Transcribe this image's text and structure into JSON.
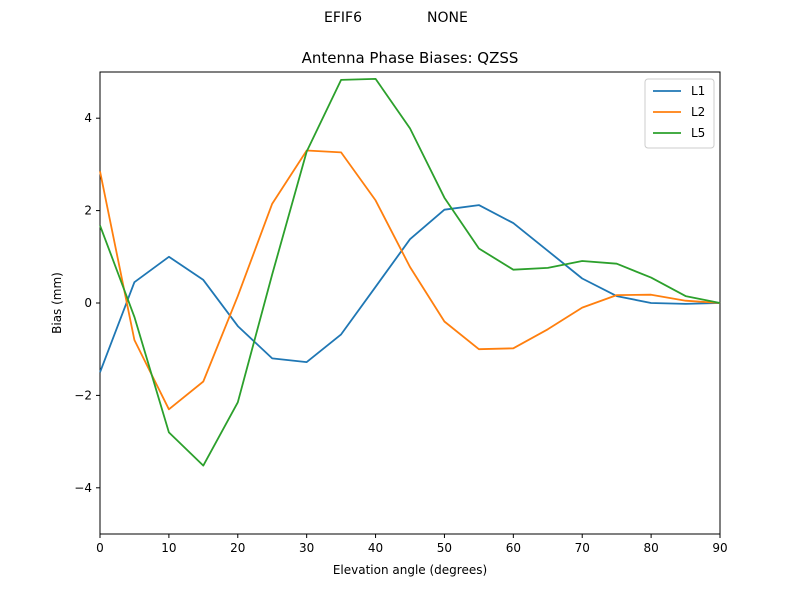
{
  "header": {
    "left": "EFIF6",
    "right": "NONE"
  },
  "chart_data": {
    "type": "line",
    "title": "Antenna Phase Biases: QZSS",
    "xlabel": "Elevation angle (degrees)",
    "ylabel": "Bias (mm)",
    "xlim": [
      0,
      90
    ],
    "ylim": [
      -5,
      5
    ],
    "xticks": [
      0,
      10,
      20,
      30,
      40,
      50,
      60,
      70,
      80,
      90
    ],
    "yticks": [
      -4,
      -2,
      0,
      2,
      4
    ],
    "xtick_labels": [
      "0",
      "10",
      "20",
      "30",
      "40",
      "50",
      "60",
      "70",
      "80",
      "90"
    ],
    "ytick_labels": [
      "−4",
      "−2",
      "0",
      "2",
      "4"
    ],
    "grid": false,
    "legend_position": "top-right",
    "x": [
      0,
      5,
      10,
      15,
      20,
      25,
      30,
      35,
      40,
      45,
      50,
      55,
      60,
      65,
      70,
      75,
      80,
      85,
      90
    ],
    "series": [
      {
        "name": "L1",
        "color": "#1f77b4",
        "values": [
          -1.5,
          0.45,
          1.0,
          0.5,
          -0.5,
          -1.2,
          -1.28,
          -0.68,
          0.35,
          1.38,
          2.02,
          2.12,
          1.73,
          1.13,
          0.53,
          0.15,
          0.0,
          -0.02,
          0.0
        ]
      },
      {
        "name": "L2",
        "color": "#ff7f0e",
        "values": [
          2.85,
          -0.8,
          -2.3,
          -1.7,
          0.15,
          2.15,
          3.3,
          3.26,
          2.22,
          0.78,
          -0.4,
          -1.0,
          -0.98,
          -0.57,
          -0.1,
          0.17,
          0.18,
          0.05,
          0.0
        ]
      },
      {
        "name": "L5",
        "color": "#2ca02c",
        "values": [
          1.68,
          -0.3,
          -2.8,
          -3.52,
          -2.15,
          0.62,
          3.28,
          4.83,
          4.85,
          3.78,
          2.28,
          1.18,
          0.72,
          0.76,
          0.91,
          0.85,
          0.55,
          0.15,
          0.0
        ]
      }
    ]
  }
}
